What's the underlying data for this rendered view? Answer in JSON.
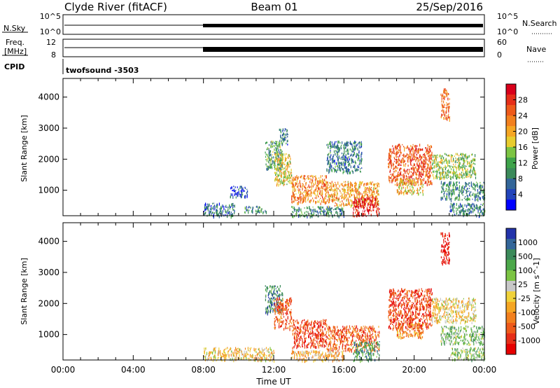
{
  "header": {
    "station": "Clyde River (fitACF)",
    "beam": "Beam 01",
    "date": "25/Sep/2016"
  },
  "top_panels": {
    "nsky_label": "N.Sky",
    "nsky_ticks": [
      "10^5",
      "10^0"
    ],
    "nsearch_label": "N.Search",
    "nsearch_ticks": [
      "10^5",
      "10^0"
    ],
    "freq_label": "Freq.",
    "freq_unit": "[MHz]",
    "freq_ticks": [
      "12",
      "8"
    ],
    "nave_label": "Nave",
    "nave_ticks": [
      "60",
      "0"
    ],
    "cpid_label": "CPID",
    "cpid_value": "twofsound -3503"
  },
  "chart_data": [
    {
      "type": "heatmap",
      "name": "power",
      "ylabel": "Slant Range [km]",
      "yticks": [
        "1000",
        "2000",
        "3000",
        "4000"
      ],
      "ylim": [
        180,
        4600
      ],
      "xlim_hours": [
        0,
        24
      ],
      "colorbar": {
        "label": "Power [dB]",
        "ticks": [
          "4",
          "8",
          "12",
          "16",
          "20",
          "24",
          "28"
        ],
        "range": [
          0,
          32
        ],
        "colors": [
          "#0000ff",
          "#2244bb",
          "#336699",
          "#3b8a5a",
          "#3ea34a",
          "#7cc443",
          "#e8cc2e",
          "#f5a623",
          "#f2801e",
          "#ee5a1a",
          "#e62e18",
          "#d9001a"
        ]
      },
      "data": [
        {
          "start": 8.0,
          "end": 9.8,
          "range_low": 180,
          "range_high": 600,
          "level": 0.2
        },
        {
          "start": 9.5,
          "end": 10.5,
          "range_low": 800,
          "range_high": 1150,
          "level": 0.15
        },
        {
          "start": 10.3,
          "end": 11.6,
          "range_low": 300,
          "range_high": 500,
          "level": 0.3
        },
        {
          "start": 11.5,
          "end": 12.5,
          "range_low": 1700,
          "range_high": 2600,
          "level": 0.35
        },
        {
          "start": 12.0,
          "end": 13.0,
          "range_low": 1200,
          "range_high": 2200,
          "level": 0.55
        },
        {
          "start": 12.3,
          "end": 12.8,
          "range_low": 2500,
          "range_high": 3000,
          "level": 0.25
        },
        {
          "start": 13.0,
          "end": 15.0,
          "range_low": 600,
          "range_high": 1500,
          "level": 0.7
        },
        {
          "start": 13.0,
          "end": 16.0,
          "range_low": 180,
          "range_high": 500,
          "level": 0.3
        },
        {
          "start": 15.0,
          "end": 18.0,
          "range_low": 500,
          "range_high": 1300,
          "level": 0.65
        },
        {
          "start": 15.0,
          "end": 17.0,
          "range_low": 1600,
          "range_high": 2600,
          "level": 0.25
        },
        {
          "start": 16.5,
          "end": 18.0,
          "range_low": 180,
          "range_high": 800,
          "level": 0.95
        },
        {
          "start": 18.5,
          "end": 21.0,
          "range_low": 1200,
          "range_high": 2500,
          "level": 0.8
        },
        {
          "start": 19.0,
          "end": 20.5,
          "range_low": 900,
          "range_high": 1400,
          "level": 0.6
        },
        {
          "start": 21.0,
          "end": 23.5,
          "range_low": 1400,
          "range_high": 2200,
          "level": 0.45
        },
        {
          "start": 21.5,
          "end": 24.0,
          "range_low": 700,
          "range_high": 1300,
          "level": 0.3
        },
        {
          "start": 22.0,
          "end": 24.0,
          "range_low": 200,
          "range_high": 600,
          "level": 0.25
        },
        {
          "start": 21.5,
          "end": 22.0,
          "range_low": 3300,
          "range_high": 4300,
          "level": 0.75
        }
      ]
    },
    {
      "type": "heatmap",
      "name": "velocity",
      "ylabel": "Slant Range [km]",
      "yticks": [
        "1000",
        "2000",
        "3000",
        "4000"
      ],
      "ylim": [
        180,
        4600
      ],
      "xlim_hours": [
        0,
        24
      ],
      "xticks": [
        "00:00",
        "04:00",
        "08:00",
        "12:00",
        "16:00",
        "20:00",
        "00:00"
      ],
      "xlabel": "Time UT",
      "colorbar": {
        "label": "Velocity [m s^-1]",
        "ticks": [
          "1000",
          "500",
          "100",
          "25",
          "-25",
          "-100",
          "-500",
          "-1000"
        ],
        "range": [
          -1250,
          1250
        ],
        "colors": [
          "#2233aa",
          "#336699",
          "#3b8a5a",
          "#4ca84a",
          "#7cc443",
          "#c8c8c8",
          "#f0d23a",
          "#f5a623",
          "#f2801e",
          "#ee5a1a",
          "#e62e18",
          "#e60000"
        ]
      },
      "data": [
        {
          "start": 8.0,
          "end": 12.0,
          "range_low": 180,
          "range_high": 600,
          "level": 0.55
        },
        {
          "start": 11.5,
          "end": 12.5,
          "range_low": 1700,
          "range_high": 2600,
          "level": 0.2
        },
        {
          "start": 12.0,
          "end": 13.0,
          "range_low": 1200,
          "range_high": 2200,
          "level": 0.8
        },
        {
          "start": 13.0,
          "end": 15.0,
          "range_low": 600,
          "range_high": 1500,
          "level": 0.85
        },
        {
          "start": 13.0,
          "end": 16.0,
          "range_low": 180,
          "range_high": 500,
          "level": 0.6
        },
        {
          "start": 15.0,
          "end": 18.0,
          "range_low": 500,
          "range_high": 1300,
          "level": 0.78
        },
        {
          "start": 16.5,
          "end": 18.0,
          "range_low": 180,
          "range_high": 800,
          "level": 0.25
        },
        {
          "start": 18.5,
          "end": 21.0,
          "range_low": 1200,
          "range_high": 2500,
          "level": 0.85
        },
        {
          "start": 19.0,
          "end": 20.5,
          "range_low": 900,
          "range_high": 1400,
          "level": 0.7
        },
        {
          "start": 21.0,
          "end": 23.5,
          "range_low": 1400,
          "range_high": 2200,
          "level": 0.55
        },
        {
          "start": 21.5,
          "end": 24.0,
          "range_low": 700,
          "range_high": 1300,
          "level": 0.35
        },
        {
          "start": 22.0,
          "end": 24.0,
          "range_low": 200,
          "range_high": 600,
          "level": 0.4
        },
        {
          "start": 21.5,
          "end": 22.0,
          "range_low": 3300,
          "range_high": 4300,
          "level": 0.95
        }
      ]
    }
  ]
}
